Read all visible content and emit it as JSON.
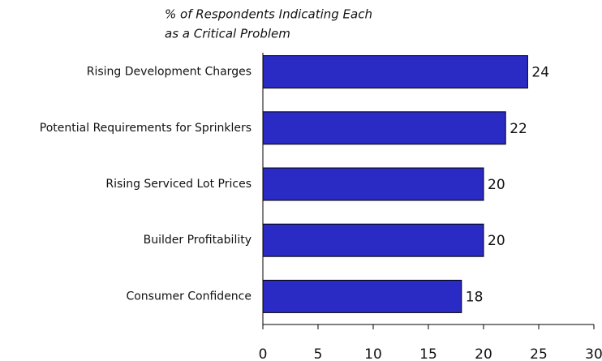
{
  "chart_data": {
    "type": "bar",
    "orientation": "horizontal",
    "title": [
      "% of Respondents Indicating Each",
      "as a Critical Problem"
    ],
    "categories": [
      "Rising Development Charges",
      "Potential Requirements for Sprinklers",
      "Rising Serviced Lot Prices",
      "Builder Profitability",
      "Consumer Confidence"
    ],
    "values": [
      24,
      22,
      20,
      20,
      18
    ],
    "color": "#2a2ac4",
    "xlim": [
      0,
      30
    ],
    "xticks": [
      0,
      5,
      10,
      15,
      20,
      25,
      30
    ],
    "grid": false
  }
}
